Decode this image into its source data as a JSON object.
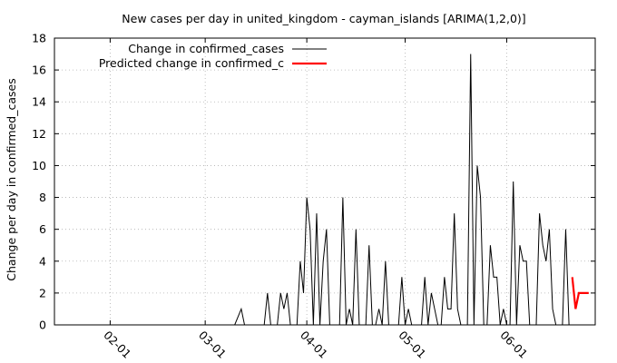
{
  "chart_data": {
    "type": "line",
    "title": "New cases per day in united_kingdom - cayman_islands [ARIMA(1,2,0)]",
    "xlabel": "",
    "ylabel": "Change per day in confirmed_cases",
    "x_axis": {
      "type": "date",
      "range": [
        "2020-01-15",
        "2020-06-28"
      ],
      "ticks": [
        "2020-02-01",
        "2020-03-01",
        "2020-04-01",
        "2020-05-01",
        "2020-06-01"
      ],
      "tick_labels": [
        "02-01",
        "03-01",
        "04-01",
        "05-01",
        "06-01"
      ]
    },
    "ylim": [
      0,
      18
    ],
    "yticks": [
      0,
      2,
      4,
      6,
      8,
      10,
      12,
      14,
      16,
      18
    ],
    "grid": true,
    "legend_position": "top-left",
    "series": [
      {
        "name": "Change in confirmed_cases",
        "color": "#000000",
        "points": [
          [
            "2020-01-15",
            0
          ],
          [
            "2020-03-10",
            0
          ],
          [
            "2020-03-12",
            1
          ],
          [
            "2020-03-13",
            0
          ],
          [
            "2020-03-19",
            0
          ],
          [
            "2020-03-20",
            2
          ],
          [
            "2020-03-21",
            0
          ],
          [
            "2020-03-23",
            0
          ],
          [
            "2020-03-24",
            2
          ],
          [
            "2020-03-25",
            1
          ],
          [
            "2020-03-26",
            2
          ],
          [
            "2020-03-27",
            0
          ],
          [
            "2020-03-29",
            0
          ],
          [
            "2020-03-30",
            4
          ],
          [
            "2020-03-31",
            2
          ],
          [
            "2020-04-01",
            8
          ],
          [
            "2020-04-02",
            6
          ],
          [
            "2020-04-03",
            0
          ],
          [
            "2020-04-04",
            7
          ],
          [
            "2020-04-05",
            0
          ],
          [
            "2020-04-06",
            4
          ],
          [
            "2020-04-07",
            6
          ],
          [
            "2020-04-08",
            0
          ],
          [
            "2020-04-10",
            0
          ],
          [
            "2020-04-11",
            0
          ],
          [
            "2020-04-12",
            8
          ],
          [
            "2020-04-13",
            0
          ],
          [
            "2020-04-14",
            1
          ],
          [
            "2020-04-15",
            0
          ],
          [
            "2020-04-16",
            6
          ],
          [
            "2020-04-17",
            0
          ],
          [
            "2020-04-19",
            0
          ],
          [
            "2020-04-20",
            5
          ],
          [
            "2020-04-21",
            0
          ],
          [
            "2020-04-22",
            0
          ],
          [
            "2020-04-23",
            1
          ],
          [
            "2020-04-24",
            0
          ],
          [
            "2020-04-25",
            4
          ],
          [
            "2020-04-26",
            0
          ],
          [
            "2020-04-29",
            0
          ],
          [
            "2020-04-30",
            3
          ],
          [
            "2020-05-01",
            0
          ],
          [
            "2020-05-02",
            1
          ],
          [
            "2020-05-03",
            0
          ],
          [
            "2020-05-06",
            0
          ],
          [
            "2020-05-07",
            3
          ],
          [
            "2020-05-08",
            0
          ],
          [
            "2020-05-09",
            2
          ],
          [
            "2020-05-10",
            1
          ],
          [
            "2020-05-11",
            0
          ],
          [
            "2020-05-12",
            0
          ],
          [
            "2020-05-13",
            3
          ],
          [
            "2020-05-14",
            1
          ],
          [
            "2020-05-15",
            1
          ],
          [
            "2020-05-16",
            7
          ],
          [
            "2020-05-17",
            1
          ],
          [
            "2020-05-18",
            0
          ],
          [
            "2020-05-19",
            0
          ],
          [
            "2020-05-20",
            0
          ],
          [
            "2020-05-21",
            17
          ],
          [
            "2020-05-22",
            0
          ],
          [
            "2020-05-23",
            10
          ],
          [
            "2020-05-24",
            8
          ],
          [
            "2020-05-25",
            0
          ],
          [
            "2020-05-26",
            0
          ],
          [
            "2020-05-27",
            5
          ],
          [
            "2020-05-28",
            3
          ],
          [
            "2020-05-29",
            3
          ],
          [
            "2020-05-30",
            0
          ],
          [
            "2020-05-31",
            1
          ],
          [
            "2020-06-01",
            0
          ],
          [
            "2020-06-02",
            0
          ],
          [
            "2020-06-03",
            9
          ],
          [
            "2020-06-04",
            0
          ],
          [
            "2020-06-05",
            5
          ],
          [
            "2020-06-06",
            4
          ],
          [
            "2020-06-07",
            4
          ],
          [
            "2020-06-08",
            0
          ],
          [
            "2020-06-09",
            0
          ],
          [
            "2020-06-10",
            0
          ],
          [
            "2020-06-11",
            7
          ],
          [
            "2020-06-12",
            5
          ],
          [
            "2020-06-13",
            4
          ],
          [
            "2020-06-14",
            6
          ],
          [
            "2020-06-15",
            1
          ],
          [
            "2020-06-16",
            0
          ],
          [
            "2020-06-17",
            0
          ],
          [
            "2020-06-18",
            0
          ],
          [
            "2020-06-19",
            6
          ],
          [
            "2020-06-20",
            0
          ]
        ]
      },
      {
        "name": "Predicted change in confirmed_c",
        "color": "#ff0000",
        "points": [
          [
            "2020-06-21",
            3
          ],
          [
            "2020-06-22",
            1
          ],
          [
            "2020-06-23",
            2
          ],
          [
            "2020-06-24",
            2
          ],
          [
            "2020-06-25",
            2
          ],
          [
            "2020-06-26",
            2
          ]
        ]
      }
    ]
  }
}
